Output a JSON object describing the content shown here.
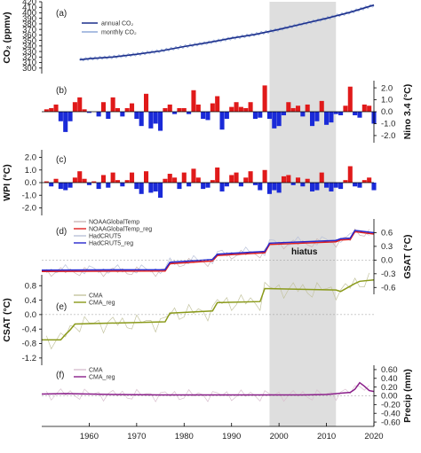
{
  "chart_data": {
    "type": "line",
    "x_range": [
      1950,
      2020
    ],
    "x_ticks": [
      1960,
      1970,
      1980,
      1990,
      2000,
      2010,
      2020
    ],
    "shaded_period": [
      1998,
      2012
    ],
    "hiatus_label": "hiatus",
    "panels": [
      {
        "id": "a",
        "label": "(a)",
        "type": "line",
        "ylabel": "CO₂ (ppmv)",
        "axis_side": "left",
        "yticks": [
          300,
          310,
          320,
          330,
          340,
          350,
          360,
          370,
          380,
          390,
          400,
          410,
          420
        ],
        "ylim": [
          290,
          420
        ],
        "legend": [
          "annual  CO₂",
          "monthly CO₂"
        ],
        "series": [
          {
            "name": "annual  CO₂",
            "color": "#1c2f8c",
            "x": [
              1958,
              1960,
              1965,
              1970,
              1975,
              1980,
              1985,
              1990,
              1995,
              2000,
              2005,
              2010,
              2015,
              2020
            ],
            "y": [
              315,
              317,
              320,
              325,
              331,
              339,
              346,
              354,
              361,
              370,
              380,
              390,
              401,
              414
            ]
          },
          {
            "name": "monthly CO₂",
            "color": "#8fa8d8",
            "seasonal_amplitude": 3
          }
        ]
      },
      {
        "id": "b",
        "label": "(b)",
        "type": "bar",
        "ylabel": "Nino 3.4 (°C)",
        "axis_side": "right",
        "yticks": [
          2.0,
          1.0,
          0.0,
          -1.0,
          -2.0
        ],
        "ylim": [
          -2.6,
          2.6
        ],
        "colors": {
          "positive": "#e01a1a",
          "negative": "#1a2ad8"
        },
        "x": [
          1951,
          1952,
          1953,
          1954,
          1955,
          1956,
          1957,
          1958,
          1959,
          1960,
          1961,
          1962,
          1963,
          1964,
          1965,
          1966,
          1967,
          1968,
          1969,
          1970,
          1971,
          1972,
          1973,
          1974,
          1975,
          1976,
          1977,
          1978,
          1979,
          1980,
          1981,
          1982,
          1983,
          1984,
          1985,
          1986,
          1987,
          1988,
          1989,
          1990,
          1991,
          1992,
          1993,
          1994,
          1995,
          1996,
          1997,
          1998,
          1999,
          2000,
          2001,
          2002,
          2003,
          2004,
          2005,
          2006,
          2007,
          2008,
          2009,
          2010,
          2011,
          2012,
          2013,
          2014,
          2015,
          2016,
          2017,
          2018,
          2019,
          2020
        ],
        "values": [
          0.2,
          0.3,
          0.6,
          -0.8,
          -1.7,
          -0.8,
          0.8,
          1.2,
          0.2,
          -0.1,
          0.0,
          -0.4,
          0.8,
          -0.6,
          1.2,
          0.3,
          -0.4,
          0.3,
          0.7,
          -0.6,
          -1.2,
          1.5,
          -1.4,
          -1.0,
          -1.6,
          0.3,
          0.6,
          -0.2,
          0.3,
          0.3,
          -0.2,
          1.8,
          0.6,
          -0.6,
          -0.7,
          0.7,
          1.3,
          -1.5,
          -0.6,
          0.4,
          0.8,
          0.4,
          0.3,
          0.8,
          -0.6,
          -0.5,
          2.2,
          -0.6,
          -1.4,
          -1.2,
          -0.3,
          0.8,
          0.3,
          0.5,
          -0.4,
          0.6,
          -1.2,
          -0.8,
          0.9,
          -1.1,
          -0.9,
          -0.2,
          -0.3,
          0.5,
          2.1,
          -0.3,
          -0.5,
          0.6,
          0.5,
          -1.0
        ]
      },
      {
        "id": "c",
        "label": "(c)",
        "type": "bar",
        "ylabel": "WPI (°C)",
        "axis_side": "left",
        "yticks": [
          2.0,
          1.0,
          0.0,
          -1.0,
          -2.0
        ],
        "ylim": [
          -2.6,
          2.6
        ],
        "colors": {
          "positive": "#e01a1a",
          "negative": "#1a2ad8"
        },
        "x": [
          1951,
          1952,
          1953,
          1954,
          1955,
          1956,
          1957,
          1958,
          1959,
          1960,
          1961,
          1962,
          1963,
          1964,
          1965,
          1966,
          1967,
          1968,
          1969,
          1970,
          1971,
          1972,
          1973,
          1974,
          1975,
          1976,
          1977,
          1978,
          1979,
          1980,
          1981,
          1982,
          1983,
          1984,
          1985,
          1986,
          1987,
          1988,
          1989,
          1990,
          1991,
          1992,
          1993,
          1994,
          1995,
          1996,
          1997,
          1998,
          1999,
          2000,
          2001,
          2002,
          2003,
          2004,
          2005,
          2006,
          2007,
          2008,
          2009,
          2010,
          2011,
          2012,
          2013,
          2014,
          2015,
          2016,
          2017,
          2018,
          2019,
          2020
        ],
        "values": [
          0.1,
          -0.3,
          0.3,
          -0.5,
          -0.6,
          -0.4,
          0.4,
          0.9,
          0.3,
          -0.2,
          0.1,
          -0.5,
          0.6,
          -0.4,
          0.8,
          0.2,
          -0.3,
          0.2,
          0.8,
          -0.5,
          -0.9,
          0.9,
          -0.8,
          -0.7,
          -1.2,
          0.3,
          0.7,
          0.4,
          -0.5,
          0.8,
          -0.3,
          1.1,
          0.4,
          -0.5,
          -0.4,
          0.2,
          1.2,
          -0.7,
          -0.3,
          0.6,
          0.8,
          -0.3,
          0.4,
          0.9,
          -0.2,
          -0.6,
          1.0,
          -0.9,
          -0.6,
          -0.8,
          0.5,
          0.6,
          -0.2,
          0.4,
          -0.3,
          0.3,
          -0.7,
          -0.6,
          0.8,
          -0.4,
          -0.7,
          -0.4,
          -0.5,
          0.2,
          1.3,
          -0.3,
          -0.4,
          0.2,
          0.4,
          -0.6
        ]
      },
      {
        "id": "d",
        "label": "(d)",
        "type": "line",
        "ylabel": "GSAT (°C)",
        "axis_side": "right",
        "yticks": [
          0.6,
          0.3,
          0.0,
          -0.3,
          -0.6
        ],
        "ylim": [
          -0.75,
          0.9
        ],
        "legend": [
          "NOAAGlobalTemp",
          "NOAAGlobalTemp_reg",
          "HadCRUT5",
          "HadCRUT5_reg"
        ],
        "series": [
          {
            "name": "NOAAGlobalTemp",
            "color": "#c9b5b5",
            "kind": "raw"
          },
          {
            "name": "NOAAGlobalTemp_reg",
            "color": "#e0201f",
            "x": [
              1950,
              1976,
              1977,
              1986,
              1987,
              1997,
              1998,
              2012,
              2013,
              2015,
              2016,
              2020
            ],
            "y": [
              -0.25,
              -0.24,
              -0.08,
              -0.02,
              0.1,
              0.16,
              0.34,
              0.4,
              0.44,
              0.45,
              0.62,
              0.57
            ]
          },
          {
            "name": "HadCRUT5",
            "color": "#b9c1d9",
            "kind": "raw"
          },
          {
            "name": "HadCRUT5_reg",
            "color": "#2626cc",
            "x": [
              1950,
              1976,
              1977,
              1986,
              1987,
              1997,
              1998,
              2012,
              2013,
              2015,
              2016,
              2020
            ],
            "y": [
              -0.22,
              -0.21,
              -0.05,
              0.01,
              0.13,
              0.19,
              0.37,
              0.43,
              0.47,
              0.48,
              0.65,
              0.6
            ]
          }
        ]
      },
      {
        "id": "e",
        "label": "(e)",
        "type": "line",
        "ylabel": "CSAT (°C)",
        "axis_side": "left",
        "yticks": [
          0.8,
          0.4,
          0.0,
          -0.4,
          -0.8,
          -1.2
        ],
        "ylim": [
          -1.4,
          1.1
        ],
        "legend": [
          "CMA",
          "CMA_reg"
        ],
        "series": [
          {
            "name": "CMA",
            "color": "#c4c4a0",
            "kind": "raw"
          },
          {
            "name": "CMA_reg",
            "color": "#8a9a1a",
            "x": [
              1950,
              1954,
              1955,
              1956,
              1957,
              1976,
              1977,
              1986,
              1987,
              1996,
              1997,
              2012,
              2013,
              2016,
              2017,
              2020
            ],
            "y": [
              -0.7,
              -0.7,
              -0.55,
              -0.42,
              -0.26,
              -0.2,
              0.04,
              0.1,
              0.33,
              0.36,
              0.72,
              0.68,
              0.64,
              0.86,
              0.92,
              0.96
            ]
          }
        ]
      },
      {
        "id": "f",
        "label": "(f)",
        "type": "line",
        "ylabel": "Precip (mm)",
        "axis_side": "right",
        "yticks": [
          0.6,
          0.4,
          0.2,
          0.0,
          -0.2,
          -0.4,
          -0.6
        ],
        "ylim": [
          -0.7,
          0.7
        ],
        "legend": [
          "CMA",
          "CMA_reg"
        ],
        "series": [
          {
            "name": "CMA",
            "color": "#d9c0cf",
            "kind": "raw"
          },
          {
            "name": "CMA_reg",
            "color": "#8a1e8a",
            "x": [
              1950,
              1955,
              1965,
              1975,
              1985,
              1995,
              2005,
              2010,
              2015,
              2016,
              2017,
              2018,
              2019,
              2020
            ],
            "y": [
              0.04,
              0.05,
              0.03,
              0.02,
              0.02,
              0.02,
              0.02,
              0.03,
              0.08,
              0.15,
              0.3,
              0.22,
              0.12,
              0.1
            ]
          }
        ]
      }
    ]
  }
}
